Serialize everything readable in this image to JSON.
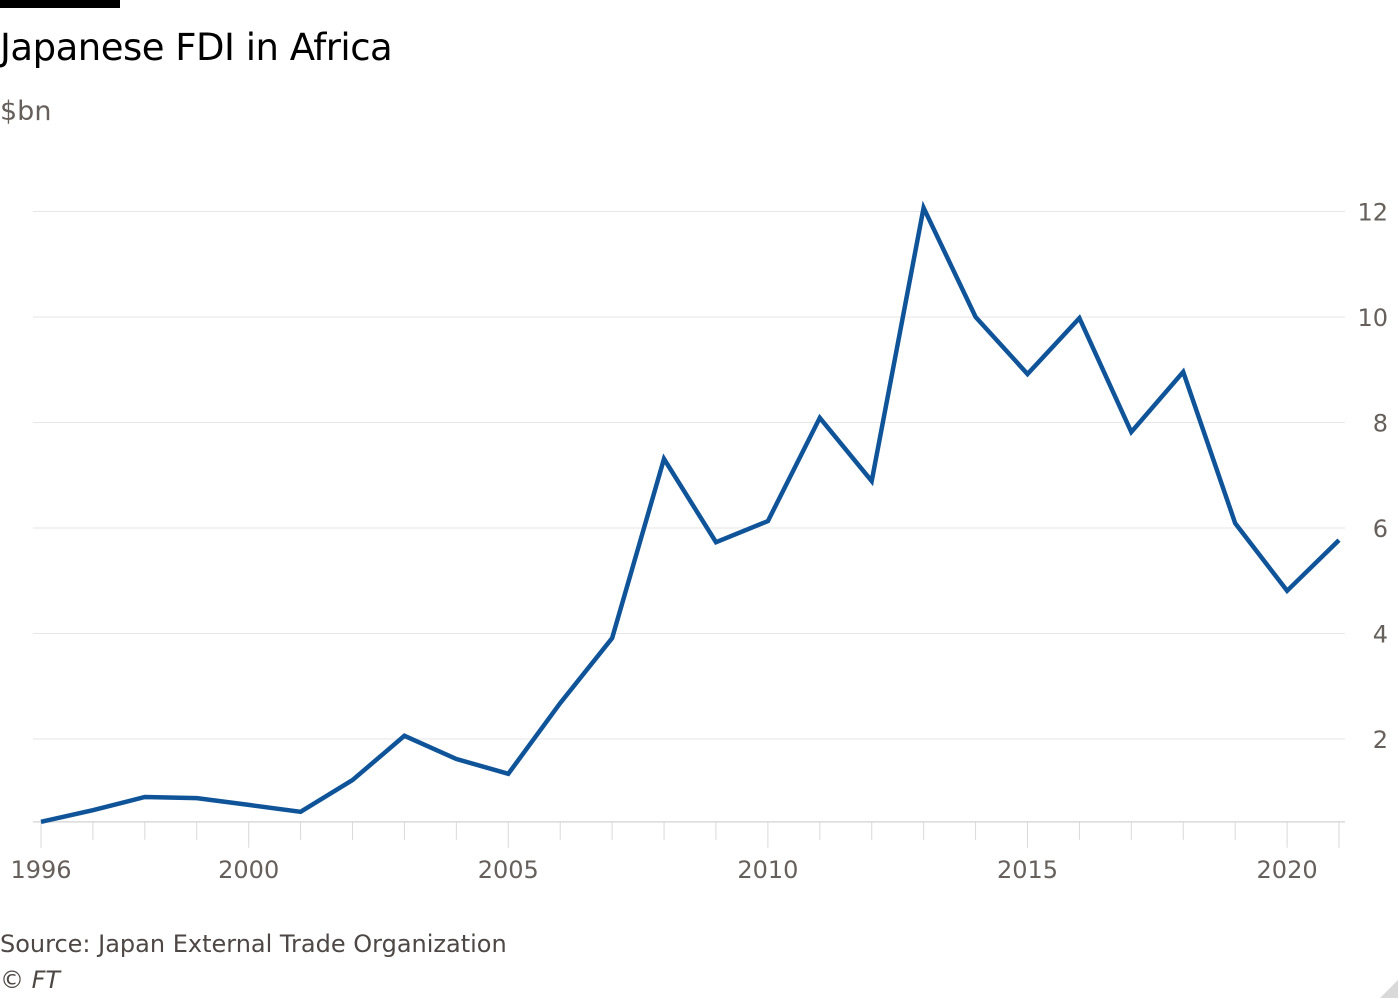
{
  "header": {
    "title": "Japanese FDI in Africa",
    "subtitle": "$bn"
  },
  "footer": {
    "source": "Source: Japan External Trade Organization",
    "copyright": "© FT"
  },
  "colors": {
    "line": "#0f5499",
    "grid": "#e6e6e6",
    "axis": "#d9d9d9",
    "text": "#66605c"
  },
  "chart_data": {
    "type": "line",
    "title": "Japanese FDI in Africa",
    "subtitle": "$bn",
    "xlabel": "",
    "ylabel": "$bn",
    "x": [
      1996,
      1997,
      1998,
      1999,
      2000,
      2001,
      2002,
      2003,
      2004,
      2005,
      2006,
      2007,
      2008,
      2009,
      2010,
      2011,
      2012,
      2013,
      2014,
      2015,
      2016,
      2017,
      2018,
      2019,
      2020,
      2021
    ],
    "series": [
      {
        "name": "Japanese FDI in Africa",
        "values": [
          0.43,
          0.65,
          0.9,
          0.88,
          0.75,
          0.62,
          1.22,
          2.06,
          1.62,
          1.34,
          2.68,
          3.91,
          7.31,
          5.73,
          6.13,
          8.09,
          6.89,
          12.07,
          10.0,
          8.92,
          9.98,
          7.82,
          8.96,
          6.09,
          4.81,
          5.77
        ]
      }
    ],
    "xlim": [
      1996,
      2021
    ],
    "ylim": [
      0.43,
      12
    ],
    "y_ticks": [
      2,
      4,
      6,
      8,
      10,
      12
    ],
    "y_tick_labels": [
      "2",
      "4",
      "6",
      "8",
      "10",
      "12"
    ],
    "x_major_ticks": [
      1996,
      2000,
      2005,
      2010,
      2015,
      2020
    ],
    "x_tick_labels": [
      "1996",
      "2000",
      "2005",
      "2010",
      "2015",
      "2020"
    ],
    "grid": true,
    "y_axis_side": "right",
    "legend": "none"
  }
}
